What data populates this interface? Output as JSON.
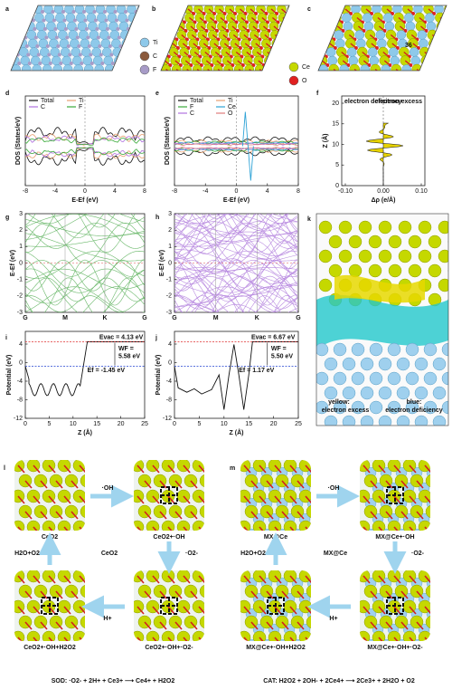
{
  "panels": {
    "a": {
      "label": "a",
      "legend": [
        "Ti",
        "C",
        "F"
      ]
    },
    "b": {
      "label": "b",
      "legend": [
        "Ce",
        "O"
      ]
    },
    "c": {
      "label": "c",
      "annotation": "36"
    },
    "d": {
      "label": "d",
      "ylabel": "DOS (States/eV)",
      "xlabel": "E-Ef (eV)",
      "xticks": [
        "-8",
        "-4",
        "0",
        "4",
        "8"
      ],
      "legend": [
        "Total",
        "Ti",
        "C",
        "F"
      ]
    },
    "e": {
      "label": "e",
      "ylabel": "DOS (States/eV)",
      "xlabel": "E-Ef (eV)",
      "xticks": [
        "-8",
        "-4",
        "0",
        "4",
        "8"
      ],
      "legend": [
        "Total",
        "Ti",
        "F",
        "Ce",
        "C",
        "O"
      ]
    },
    "f": {
      "label": "f",
      "ylabel": "Z (Å)",
      "xlabel": "Δρ (e/Å)",
      "xticks": [
        "-0.10",
        "0.00",
        "0.10"
      ],
      "yticks": [
        "0",
        "5",
        "10",
        "15",
        "20"
      ],
      "notes": [
        "electron deficiency",
        "electron excess"
      ]
    },
    "g": {
      "label": "g",
      "ylabel": "E-Ef (eV)",
      "yticks": [
        "-3",
        "-2",
        "-1",
        "0",
        "1",
        "2",
        "3"
      ],
      "xticks": [
        "G",
        "M",
        "K",
        "G"
      ]
    },
    "h": {
      "label": "h",
      "ylabel": "E-Ef (eV)",
      "yticks": [
        "-3",
        "-2",
        "-1",
        "0",
        "1",
        "2",
        "3"
      ],
      "xticks": [
        "G",
        "M",
        "K",
        "G"
      ]
    },
    "i": {
      "label": "i",
      "ylabel": "Potential (eV)",
      "xlabel": "Z (Å)",
      "xticks": [
        "0",
        "5",
        "10",
        "15",
        "20",
        "25"
      ],
      "yticks": [
        "-12",
        "-8",
        "-4",
        "0",
        "4"
      ],
      "notes": [
        "Evac = 4.13 eV",
        "WF =",
        "5.58 eV",
        "Ef = -1.45 eV"
      ]
    },
    "j": {
      "label": "j",
      "ylabel": "Potential (eV)",
      "xlabel": "Z (Å)",
      "xticks": [
        "0",
        "5",
        "10",
        "15",
        "20",
        "25"
      ],
      "yticks": [
        "-12",
        "-8",
        "-4",
        "0",
        "4"
      ],
      "notes": [
        "Evac = 6.67 eV",
        "WF =",
        "5.50 eV",
        "Ef = 1.17 eV"
      ]
    },
    "k": {
      "label": "k",
      "notes": [
        "yellow:",
        "electron excess",
        "blue:",
        "electron deficiency"
      ]
    },
    "l": {
      "label": "l",
      "steps": [
        "CeO2",
        "CeO2+·OH",
        "CeO2+·OH+·O2-",
        "CeO2+·OH+H2O2"
      ],
      "arrows": [
        "·OH",
        "·O2-",
        "H+",
        "H2O+O2"
      ],
      "center": "CeO2",
      "equation": "SOD: ·O2- + 2H+ + Ce3+ ⟶ Ce4+ + H2O2"
    },
    "m": {
      "label": "m",
      "steps": [
        "MX@Ce",
        "MX@Ce+·OH",
        "MX@Ce+·OH+·O2-",
        "MX@Ce+·OH+H2O2"
      ],
      "arrows": [
        "·OH",
        "·O2-",
        "H+",
        "H2O+O2"
      ],
      "center": "MX@Ce",
      "equation": "CAT: H2O2 + 2OH- + 2Ce4+ ⟶ 2Ce3+ + 2H2O + O2"
    }
  }
}
